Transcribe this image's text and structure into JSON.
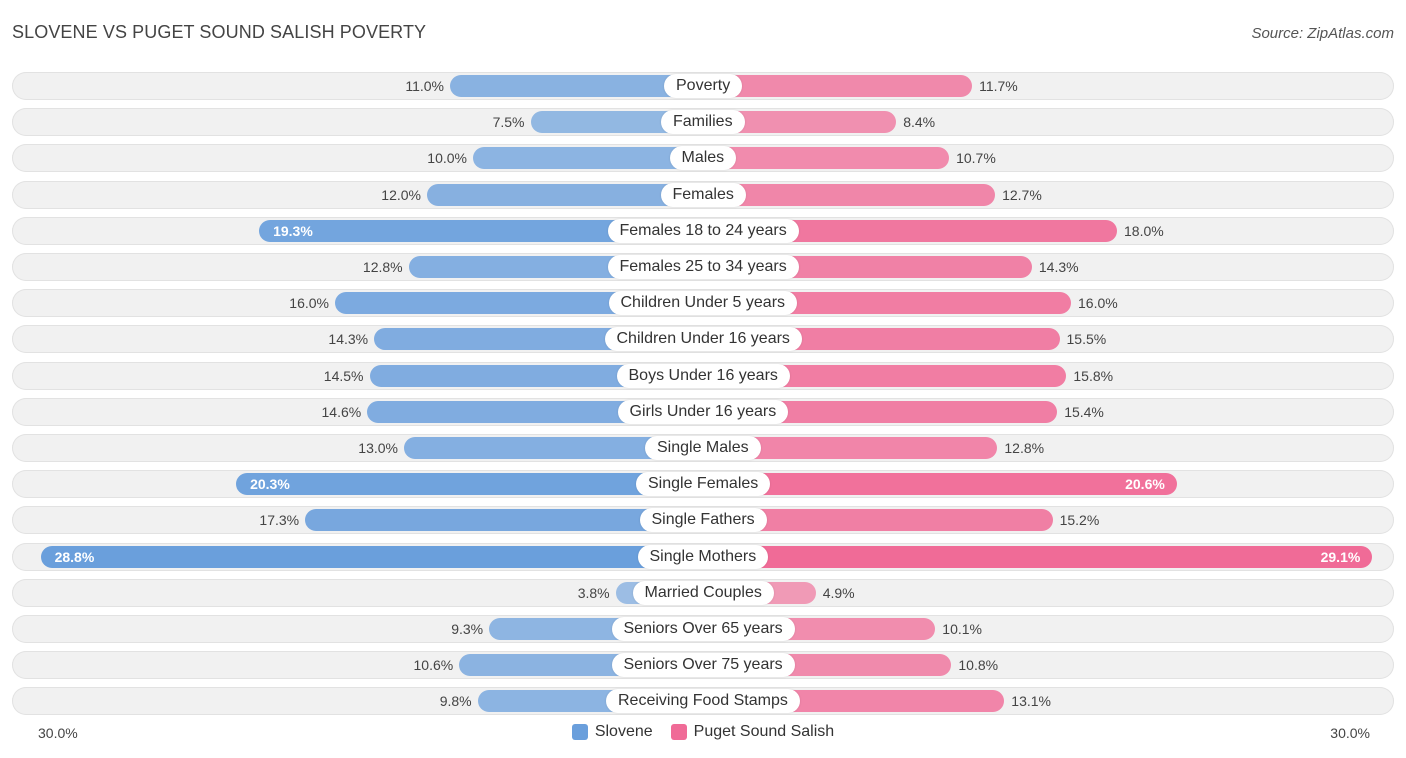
{
  "chart_data": {
    "type": "bar",
    "orientation": "horizontal-diverging",
    "title": "SLOVENE VS PUGET SOUND SALISH POVERTY",
    "source": "Source: ZipAtlas.com",
    "categories": [
      "Poverty",
      "Families",
      "Males",
      "Females",
      "Females 18 to 24 years",
      "Females 25 to 34 years",
      "Children Under 5 years",
      "Children Under 16 years",
      "Boys Under 16 years",
      "Girls Under 16 years",
      "Single Males",
      "Single Females",
      "Single Fathers",
      "Single Mothers",
      "Married Couples",
      "Seniors Over 65 years",
      "Seniors Over 75 years",
      "Receiving Food Stamps"
    ],
    "series": [
      {
        "name": "Slovene",
        "color": "#6a9fdc",
        "values": [
          11.0,
          7.5,
          10.0,
          12.0,
          19.3,
          12.8,
          16.0,
          14.3,
          14.5,
          14.6,
          13.0,
          20.3,
          17.3,
          28.8,
          3.8,
          9.3,
          10.6,
          9.8
        ],
        "labels": [
          "11.0%",
          "7.5%",
          "10.0%",
          "12.0%",
          "19.3%",
          "12.8%",
          "16.0%",
          "14.3%",
          "14.5%",
          "14.6%",
          "13.0%",
          "20.3%",
          "17.3%",
          "28.8%",
          "3.8%",
          "9.3%",
          "10.6%",
          "9.8%"
        ]
      },
      {
        "name": "Puget Sound Salish",
        "color": "#f06b97",
        "values": [
          11.7,
          8.4,
          10.7,
          12.7,
          18.0,
          14.3,
          16.0,
          15.5,
          15.8,
          15.4,
          12.8,
          20.6,
          15.2,
          29.1,
          4.9,
          10.1,
          10.8,
          13.1
        ],
        "labels": [
          "11.7%",
          "8.4%",
          "10.7%",
          "12.7%",
          "18.0%",
          "14.3%",
          "16.0%",
          "15.5%",
          "15.8%",
          "15.4%",
          "12.8%",
          "20.6%",
          "15.2%",
          "29.1%",
          "4.9%",
          "10.1%",
          "10.8%",
          "13.1%"
        ]
      }
    ],
    "xlim": [
      0,
      30
    ],
    "axis_left_label": "30.0%",
    "axis_right_label": "30.0%",
    "legend_position": "bottom-center"
  }
}
